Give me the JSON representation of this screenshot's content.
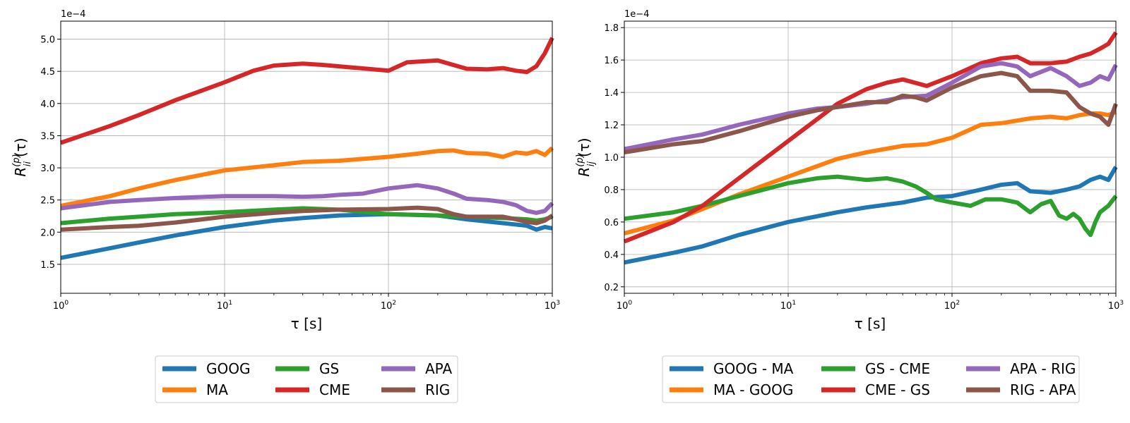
{
  "charts": [
    {
      "id": "left",
      "type": "line",
      "x_scale": "log",
      "xlim": [
        1,
        1000
      ],
      "ylim": [
        1.05,
        5.28
      ],
      "y_multiplier_label": "1e−4",
      "xlabel": "τ [s]",
      "ylabel": "R_ii^(p)(τ)",
      "yticks": [
        1.5,
        2.0,
        2.5,
        3.0,
        3.5,
        4.0,
        4.5,
        5.0
      ],
      "ytick_labels": [
        "1.5",
        "2.0",
        "2.5",
        "3.0",
        "3.5",
        "4.0",
        "4.5",
        "5.0"
      ],
      "xticks": [
        1,
        10,
        100,
        1000
      ],
      "xtick_labels": [
        {
          "base": "10",
          "exp": "0"
        },
        {
          "base": "10",
          "exp": "1"
        },
        {
          "base": "10",
          "exp": "2"
        },
        {
          "base": "10",
          "exp": "3"
        }
      ],
      "grid": true,
      "legend_placement": "below",
      "legend_columns": 3,
      "series": [
        {
          "name": "GOOG",
          "color": "#1f77b4",
          "x": [
            1,
            2,
            3,
            5,
            10,
            20,
            30,
            50,
            100,
            200,
            300,
            500,
            700,
            800,
            900,
            1000
          ],
          "y": [
            1.6,
            1.75,
            1.84,
            1.95,
            2.08,
            2.18,
            2.22,
            2.26,
            2.28,
            2.26,
            2.2,
            2.14,
            2.1,
            2.04,
            2.08,
            2.06
          ]
        },
        {
          "name": "MA",
          "color": "#ff7f0e",
          "x": [
            1,
            2,
            3,
            5,
            10,
            20,
            30,
            50,
            100,
            150,
            200,
            250,
            300,
            400,
            500,
            600,
            700,
            800,
            900,
            1000
          ],
          "y": [
            2.41,
            2.56,
            2.68,
            2.81,
            2.96,
            3.04,
            3.09,
            3.11,
            3.17,
            3.22,
            3.26,
            3.27,
            3.23,
            3.22,
            3.17,
            3.24,
            3.22,
            3.26,
            3.2,
            3.31
          ]
        },
        {
          "name": "GS",
          "color": "#2ca02c",
          "x": [
            1,
            2,
            3,
            5,
            10,
            20,
            30,
            50,
            100,
            200,
            300,
            500,
            700,
            800,
            900,
            1000
          ],
          "y": [
            2.14,
            2.21,
            2.24,
            2.28,
            2.31,
            2.35,
            2.37,
            2.35,
            2.28,
            2.26,
            2.24,
            2.22,
            2.2,
            2.18,
            2.2,
            2.24
          ]
        },
        {
          "name": "CME",
          "color": "#d62728",
          "x": [
            1,
            2,
            3,
            5,
            10,
            15,
            20,
            30,
            40,
            60,
            100,
            130,
            200,
            300,
            400,
            500,
            600,
            700,
            800,
            900,
            1000
          ],
          "y": [
            3.39,
            3.65,
            3.82,
            4.05,
            4.33,
            4.51,
            4.59,
            4.62,
            4.6,
            4.56,
            4.51,
            4.64,
            4.67,
            4.54,
            4.53,
            4.55,
            4.51,
            4.49,
            4.58,
            4.78,
            5.02
          ]
        },
        {
          "name": "APA",
          "color": "#9467bd",
          "x": [
            1,
            2,
            3,
            5,
            10,
            20,
            30,
            40,
            50,
            70,
            100,
            150,
            200,
            250,
            300,
            400,
            500,
            600,
            700,
            800,
            900,
            1000
          ],
          "y": [
            2.37,
            2.47,
            2.5,
            2.53,
            2.56,
            2.56,
            2.55,
            2.56,
            2.58,
            2.6,
            2.68,
            2.73,
            2.68,
            2.6,
            2.52,
            2.5,
            2.47,
            2.42,
            2.33,
            2.3,
            2.33,
            2.45
          ]
        },
        {
          "name": "RIG",
          "color": "#8c564b",
          "x": [
            1,
            2,
            3,
            5,
            10,
            20,
            30,
            50,
            100,
            150,
            200,
            250,
            300,
            400,
            500,
            600,
            700,
            800,
            900,
            1000
          ],
          "y": [
            2.04,
            2.08,
            2.1,
            2.15,
            2.24,
            2.3,
            2.33,
            2.35,
            2.36,
            2.38,
            2.36,
            2.28,
            2.24,
            2.24,
            2.24,
            2.2,
            2.16,
            2.14,
            2.18,
            2.26
          ]
        }
      ]
    },
    {
      "id": "right",
      "type": "line",
      "x_scale": "log",
      "xlim": [
        1,
        1000
      ],
      "ylim": [
        0.16,
        1.84
      ],
      "y_multiplier_label": "1e−4",
      "xlabel": "τ [s]",
      "ylabel": "R_ij^(p)(τ)",
      "yticks": [
        0.2,
        0.4,
        0.6,
        0.8,
        1.0,
        1.2,
        1.4,
        1.6,
        1.8
      ],
      "ytick_labels": [
        "0.2",
        "0.4",
        "0.6",
        "0.8",
        "1.0",
        "1.2",
        "1.4",
        "1.6",
        "1.8"
      ],
      "xticks": [
        1,
        10,
        100,
        1000
      ],
      "xtick_labels": [
        {
          "base": "10",
          "exp": "0"
        },
        {
          "base": "10",
          "exp": "1"
        },
        {
          "base": "10",
          "exp": "2"
        },
        {
          "base": "10",
          "exp": "3"
        }
      ],
      "grid": true,
      "legend_placement": "below",
      "legend_columns": 3,
      "series": [
        {
          "name": "GOOG - MA",
          "color": "#1f77b4",
          "x": [
            1,
            2,
            3,
            5,
            10,
            20,
            30,
            50,
            70,
            100,
            150,
            200,
            250,
            300,
            400,
            500,
            600,
            700,
            800,
            900,
            1000
          ],
          "y": [
            0.35,
            0.41,
            0.45,
            0.52,
            0.6,
            0.66,
            0.69,
            0.72,
            0.75,
            0.76,
            0.8,
            0.83,
            0.84,
            0.79,
            0.78,
            0.8,
            0.82,
            0.86,
            0.88,
            0.86,
            0.94
          ]
        },
        {
          "name": "MA - GOOG",
          "color": "#ff7f0e",
          "x": [
            1,
            2,
            3,
            5,
            10,
            20,
            30,
            50,
            70,
            100,
            150,
            200,
            300,
            400,
            500,
            600,
            700,
            800,
            900,
            1000
          ],
          "y": [
            0.53,
            0.61,
            0.68,
            0.77,
            0.88,
            0.99,
            1.03,
            1.07,
            1.08,
            1.12,
            1.2,
            1.21,
            1.24,
            1.25,
            1.24,
            1.26,
            1.27,
            1.27,
            1.26,
            1.28
          ]
        },
        {
          "name": "GS - CME",
          "color": "#2ca02c",
          "x": [
            1,
            2,
            3,
            5,
            10,
            15,
            20,
            30,
            40,
            50,
            60,
            70,
            80,
            100,
            130,
            160,
            200,
            250,
            300,
            350,
            400,
            450,
            500,
            550,
            600,
            650,
            700,
            750,
            800,
            900,
            1000
          ],
          "y": [
            0.62,
            0.66,
            0.7,
            0.76,
            0.84,
            0.87,
            0.88,
            0.86,
            0.87,
            0.85,
            0.82,
            0.78,
            0.74,
            0.72,
            0.7,
            0.74,
            0.74,
            0.72,
            0.66,
            0.71,
            0.73,
            0.64,
            0.62,
            0.65,
            0.62,
            0.56,
            0.52,
            0.6,
            0.66,
            0.7,
            0.76
          ]
        },
        {
          "name": "CME - GS",
          "color": "#d62728",
          "x": [
            1,
            2,
            3,
            5,
            10,
            20,
            30,
            40,
            50,
            70,
            100,
            150,
            200,
            250,
            300,
            400,
            500,
            600,
            700,
            800,
            900,
            1000
          ],
          "y": [
            0.48,
            0.6,
            0.7,
            0.87,
            1.1,
            1.33,
            1.42,
            1.46,
            1.48,
            1.44,
            1.5,
            1.58,
            1.61,
            1.62,
            1.58,
            1.58,
            1.59,
            1.62,
            1.64,
            1.67,
            1.7,
            1.77
          ]
        },
        {
          "name": "APA - RIG",
          "color": "#9467bd",
          "x": [
            1,
            2,
            3,
            5,
            10,
            15,
            20,
            30,
            50,
            70,
            100,
            150,
            200,
            250,
            300,
            400,
            500,
            600,
            700,
            800,
            900,
            1000
          ],
          "y": [
            1.05,
            1.11,
            1.14,
            1.2,
            1.27,
            1.3,
            1.31,
            1.33,
            1.37,
            1.38,
            1.46,
            1.56,
            1.58,
            1.56,
            1.5,
            1.55,
            1.5,
            1.44,
            1.46,
            1.5,
            1.48,
            1.57
          ]
        },
        {
          "name": "RIG - APA",
          "color": "#8c564b",
          "x": [
            1,
            2,
            3,
            5,
            10,
            15,
            20,
            30,
            40,
            50,
            60,
            70,
            80,
            100,
            150,
            200,
            250,
            300,
            400,
            500,
            600,
            700,
            800,
            900,
            1000
          ],
          "y": [
            1.03,
            1.08,
            1.1,
            1.16,
            1.25,
            1.29,
            1.31,
            1.34,
            1.34,
            1.38,
            1.37,
            1.35,
            1.38,
            1.43,
            1.5,
            1.52,
            1.5,
            1.41,
            1.41,
            1.4,
            1.31,
            1.27,
            1.25,
            1.2,
            1.33
          ]
        }
      ]
    }
  ]
}
